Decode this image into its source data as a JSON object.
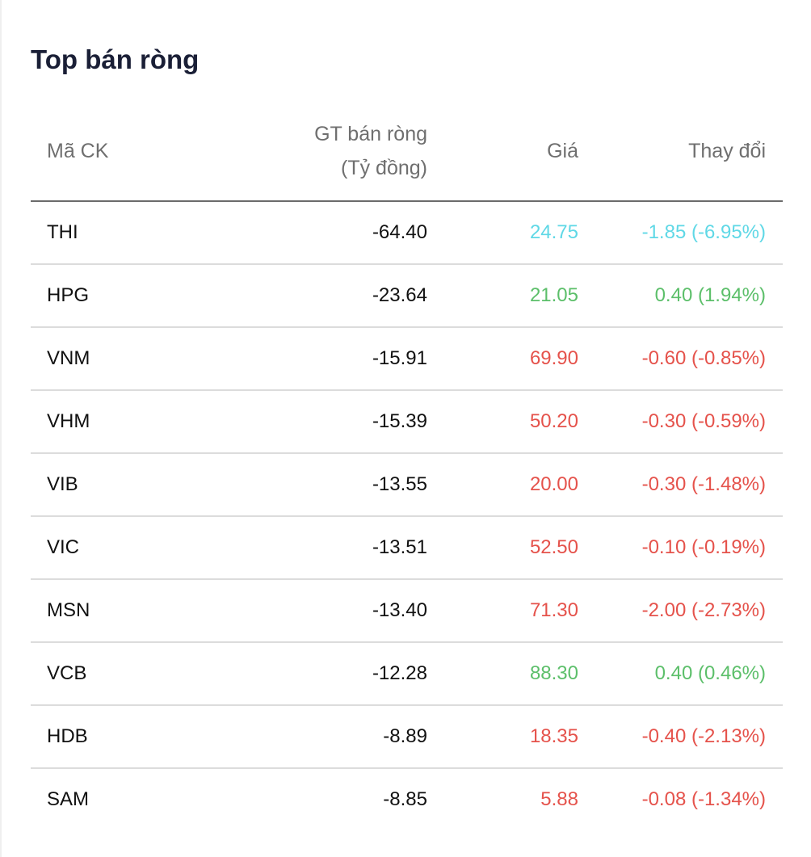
{
  "title": "Top bán ròng",
  "colors": {
    "floor": "#5fd8e6",
    "up": "#5cbf6a",
    "down": "#e5524b"
  },
  "headers": {
    "code": "Mã CK",
    "value_line1": "GT bán ròng",
    "value_line2": "(Tỷ đồng)",
    "price": "Giá",
    "change": "Thay đổi"
  },
  "rows": [
    {
      "code": "THI",
      "value": "-64.40",
      "price": "24.75",
      "change": "-1.85 (-6.95%)",
      "status": "floor"
    },
    {
      "code": "HPG",
      "value": "-23.64",
      "price": "21.05",
      "change": "0.40 (1.94%)",
      "status": "up"
    },
    {
      "code": "VNM",
      "value": "-15.91",
      "price": "69.90",
      "change": "-0.60 (-0.85%)",
      "status": "down"
    },
    {
      "code": "VHM",
      "value": "-15.39",
      "price": "50.20",
      "change": "-0.30 (-0.59%)",
      "status": "down"
    },
    {
      "code": "VIB",
      "value": "-13.55",
      "price": "20.00",
      "change": "-0.30 (-1.48%)",
      "status": "down"
    },
    {
      "code": "VIC",
      "value": "-13.51",
      "price": "52.50",
      "change": "-0.10 (-0.19%)",
      "status": "down"
    },
    {
      "code": "MSN",
      "value": "-13.40",
      "price": "71.30",
      "change": "-2.00 (-2.73%)",
      "status": "down"
    },
    {
      "code": "VCB",
      "value": "-12.28",
      "price": "88.30",
      "change": "0.40 (0.46%)",
      "status": "up"
    },
    {
      "code": "HDB",
      "value": "-8.89",
      "price": "18.35",
      "change": "-0.40 (-2.13%)",
      "status": "down"
    },
    {
      "code": "SAM",
      "value": "-8.85",
      "price": "5.88",
      "change": "-0.08 (-1.34%)",
      "status": "down"
    }
  ]
}
